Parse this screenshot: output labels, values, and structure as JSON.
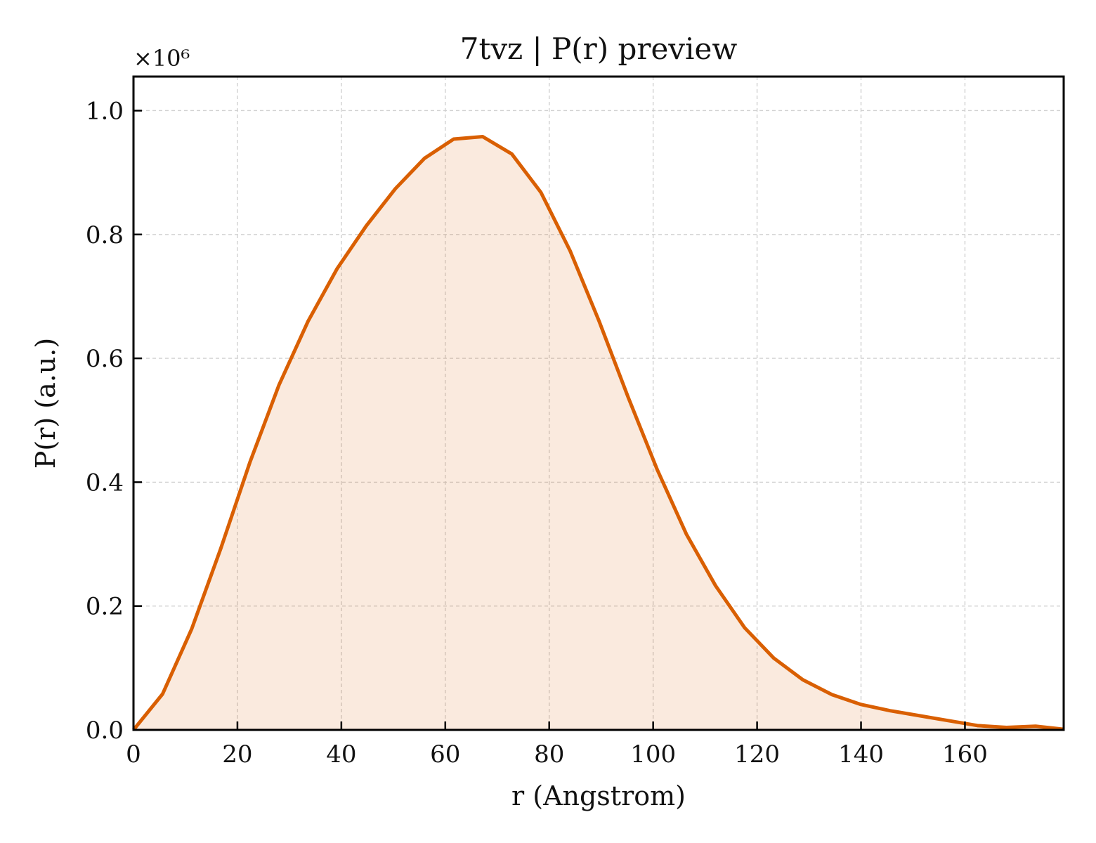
{
  "chart_data": {
    "type": "area",
    "title": "7tvz | P(r) preview",
    "xlabel": "r (Angstrom)",
    "ylabel": "P(r) (a.u.)",
    "y_multiplier_label": "×10⁶",
    "y_multiplier": 1000000,
    "xlim": [
      0,
      179
    ],
    "ylim": [
      0,
      1.055
    ],
    "x_ticks": [
      0,
      20,
      40,
      60,
      80,
      100,
      120,
      140,
      160
    ],
    "x_tick_labels": [
      "0",
      "20",
      "40",
      "60",
      "80",
      "100",
      "120",
      "140",
      "160"
    ],
    "y_ticks": [
      0.0,
      0.2,
      0.4,
      0.6,
      0.8,
      1.0
    ],
    "y_tick_labels": [
      "0.0",
      "0.2",
      "0.4",
      "0.6",
      "0.8",
      "1.0"
    ],
    "grid": true,
    "legend": "none",
    "colors": {
      "line": "#d95f02",
      "fill": "#d95f02"
    },
    "series": [
      {
        "x": [
          0,
          5.6,
          11.2,
          16.8,
          22.4,
          28.0,
          33.6,
          39.2,
          44.8,
          50.4,
          56.0,
          61.6,
          67.2,
          72.8,
          78.4,
          84.0,
          89.6,
          95.2,
          100.8,
          106.4,
          112.0,
          117.6,
          123.2,
          128.8,
          134.4,
          140.0,
          145.6,
          151.2,
          156.8,
          162.4,
          168.0,
          173.6,
          179.0
        ],
        "y": [
          0.0,
          0.058,
          0.163,
          0.293,
          0.432,
          0.557,
          0.66,
          0.745,
          0.814,
          0.874,
          0.923,
          0.954,
          0.958,
          0.93,
          0.868,
          0.774,
          0.66,
          0.537,
          0.42,
          0.316,
          0.233,
          0.165,
          0.116,
          0.081,
          0.057,
          0.041,
          0.031,
          0.023,
          0.015,
          0.007,
          0.004,
          0.006,
          0.001
        ]
      }
    ]
  }
}
